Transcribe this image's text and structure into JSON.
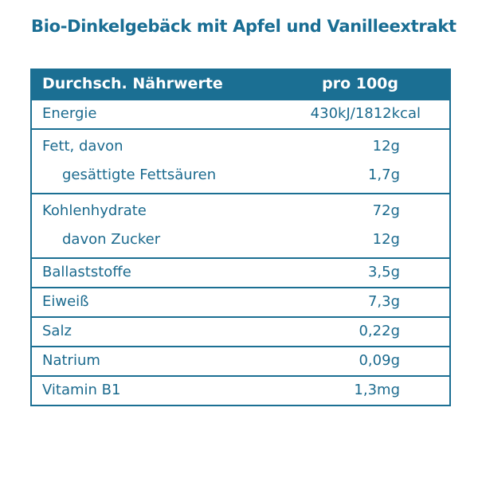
{
  "title": "Bio-Dinkelgebäck mit Apfel und Vanilleextrakt",
  "colors": {
    "accent": "#1b6f93",
    "text": "#1b6a8e",
    "header_text": "#ffffff"
  },
  "table": {
    "header": {
      "label": "Durchsch. Nährwerte",
      "value": "pro 100g"
    },
    "groups": [
      [
        {
          "label": "Energie",
          "value": "430kJ/1812kcal"
        }
      ],
      [
        {
          "label": "Fett, davon",
          "value": "12g"
        },
        {
          "label": "gesättigte Fettsäuren",
          "value": "1,7g",
          "sub": true
        }
      ],
      [
        {
          "label": "Kohlenhydrate",
          "value": "72g"
        },
        {
          "label": "davon Zucker",
          "value": "12g",
          "sub": true
        }
      ],
      [
        {
          "label": "Ballaststoffe",
          "value": "3,5g"
        }
      ],
      [
        {
          "label": "Eiweiß",
          "value": "7,3g"
        }
      ],
      [
        {
          "label": "Salz",
          "value": "0,22g"
        }
      ],
      [
        {
          "label": "Natrium",
          "value": "0,09g"
        }
      ],
      [
        {
          "label": "Vitamin B1",
          "value": "1,3mg"
        }
      ]
    ]
  }
}
